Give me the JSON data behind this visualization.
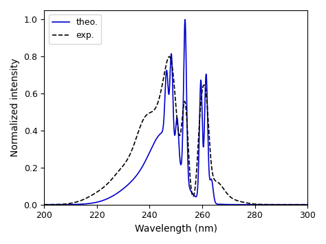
{
  "xlabel": "Wavelength (nm)",
  "ylabel": "Normalized intensity",
  "xlim": [
    200,
    300
  ],
  "ylim": [
    0.0,
    1.05
  ],
  "yticks": [
    0.0,
    0.2,
    0.4,
    0.6,
    0.8,
    1.0
  ],
  "xticks": [
    200,
    220,
    240,
    260,
    280,
    300
  ],
  "legend_labels": [
    "theo.",
    "exp."
  ],
  "theo_color": "#0000cc",
  "exp_color": "#000000",
  "figsize": [
    4.74,
    3.55
  ],
  "dpi": 100
}
